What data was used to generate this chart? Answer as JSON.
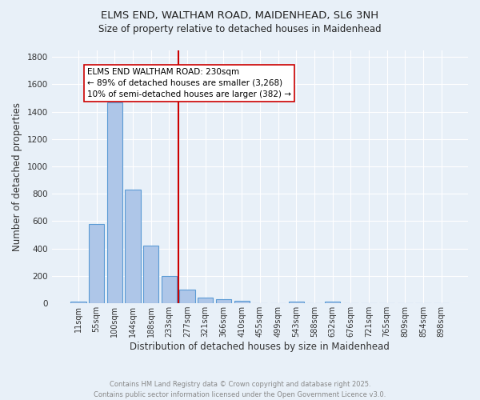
{
  "title1": "ELMS END, WALTHAM ROAD, MAIDENHEAD, SL6 3NH",
  "title2": "Size of property relative to detached houses in Maidenhead",
  "xlabel": "Distribution of detached houses by size in Maidenhead",
  "ylabel": "Number of detached properties",
  "bar_labels": [
    "11sqm",
    "55sqm",
    "100sqm",
    "144sqm",
    "188sqm",
    "233sqm",
    "277sqm",
    "321sqm",
    "366sqm",
    "410sqm",
    "455sqm",
    "499sqm",
    "543sqm",
    "588sqm",
    "632sqm",
    "676sqm",
    "721sqm",
    "765sqm",
    "809sqm",
    "854sqm",
    "898sqm"
  ],
  "bar_values": [
    15,
    580,
    1470,
    830,
    420,
    200,
    100,
    40,
    30,
    20,
    0,
    0,
    15,
    0,
    15,
    0,
    0,
    0,
    0,
    0,
    0
  ],
  "bar_color": "#aec6e8",
  "bar_edge_color": "#5b9bd5",
  "bg_color": "#e8f0f8",
  "grid_color": "#ffffff",
  "vline_color": "#cc0000",
  "annotation_text": "ELMS END WALTHAM ROAD: 230sqm\n← 89% of detached houses are smaller (3,268)\n10% of semi-detached houses are larger (382) →",
  "annotation_box_color": "#ffffff",
  "annotation_box_edge": "#cc0000",
  "ylim": [
    0,
    1850
  ],
  "yticks": [
    0,
    200,
    400,
    600,
    800,
    1000,
    1200,
    1400,
    1600,
    1800
  ],
  "footer_line1": "Contains HM Land Registry data © Crown copyright and database right 2025.",
  "footer_line2": "Contains public sector information licensed under the Open Government Licence v3.0.",
  "footer_color": "#888888",
  "title_color": "#222222"
}
